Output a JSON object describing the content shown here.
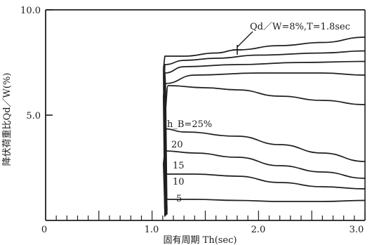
{
  "chart_data": {
    "type": "line",
    "xlabel": "固有周期 Th(sec)",
    "ylabel": "降伏荷重比Qd／W(%)",
    "xlim": [
      0,
      3.0
    ],
    "ylim": [
      0,
      10.0
    ],
    "x_ticks": [
      "0",
      "1.0",
      "2.0",
      "3.0"
    ],
    "y_ticks": [
      "10.0",
      "5.0"
    ],
    "annotation": "Qd／W=8%,T=1.8sec",
    "annotation_point": {
      "x": 1.8,
      "y": 8.1
    },
    "series": [
      {
        "label": "",
        "points": [
          [
            1.12,
            7.8
          ],
          [
            1.3,
            7.8
          ],
          [
            1.6,
            7.95
          ],
          [
            1.8,
            8.1
          ],
          [
            2.2,
            8.3
          ],
          [
            2.6,
            8.45
          ],
          [
            3.0,
            8.7
          ]
        ]
      },
      {
        "label": "",
        "points": [
          [
            1.12,
            7.4
          ],
          [
            1.3,
            7.6
          ],
          [
            1.6,
            7.7
          ],
          [
            2.0,
            7.85
          ],
          [
            2.6,
            7.95
          ],
          [
            3.0,
            8.05
          ]
        ]
      },
      {
        "label": "",
        "points": [
          [
            1.12,
            7.0
          ],
          [
            1.3,
            7.3
          ],
          [
            1.8,
            7.4
          ],
          [
            2.4,
            7.5
          ],
          [
            3.0,
            7.55
          ]
        ]
      },
      {
        "label": "",
        "points": [
          [
            1.12,
            6.5
          ],
          [
            1.4,
            6.9
          ],
          [
            2.0,
            7.0
          ],
          [
            2.6,
            7.0
          ],
          [
            3.0,
            6.9
          ]
        ]
      },
      {
        "label": "h_B=25%",
        "points": [
          [
            1.12,
            5.2
          ],
          [
            1.15,
            6.4
          ],
          [
            1.5,
            6.3
          ],
          [
            1.8,
            6.2
          ],
          [
            2.2,
            5.9
          ],
          [
            2.6,
            5.7
          ],
          [
            3.0,
            5.5
          ]
        ]
      },
      {
        "label": "20",
        "points": [
          [
            1.12,
            4.35
          ],
          [
            1.3,
            4.2
          ],
          [
            1.8,
            4.0
          ],
          [
            2.2,
            3.6
          ],
          [
            2.6,
            3.2
          ],
          [
            3.0,
            2.8
          ]
        ]
      },
      {
        "label": "15",
        "points": [
          [
            1.12,
            3.3
          ],
          [
            1.4,
            3.2
          ],
          [
            1.8,
            3.0
          ],
          [
            2.2,
            2.6
          ],
          [
            2.6,
            2.3
          ],
          [
            3.0,
            2.0
          ]
        ]
      },
      {
        "label": "10",
        "points": [
          [
            1.12,
            2.2
          ],
          [
            1.4,
            2.2
          ],
          [
            1.8,
            2.1
          ],
          [
            2.2,
            1.8
          ],
          [
            2.6,
            1.6
          ],
          [
            3.0,
            1.5
          ]
        ]
      },
      {
        "label": "5",
        "points": [
          [
            1.12,
            1.0
          ],
          [
            1.4,
            1.0
          ],
          [
            1.8,
            0.95
          ],
          [
            2.2,
            0.9
          ],
          [
            2.6,
            0.9
          ],
          [
            3.0,
            0.95
          ]
        ]
      }
    ]
  }
}
